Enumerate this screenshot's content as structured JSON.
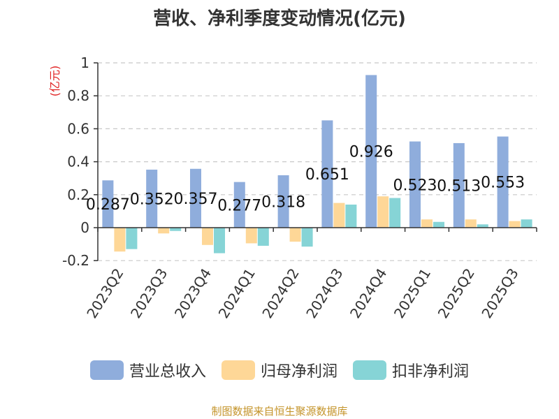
{
  "chart_data": {
    "type": "bar",
    "title": "营收、净利季度变动情况(亿元)",
    "ylabel": "(亿元)",
    "xlabel": "",
    "ylim": [
      -0.2,
      1
    ],
    "yticks": [
      -0.2,
      0,
      0.2,
      0.4,
      0.6,
      0.8,
      1
    ],
    "ytick_labels": [
      "-0.2",
      "0",
      "0.2",
      "0.4",
      "0.6",
      "0.8",
      "1"
    ],
    "grid": true,
    "categories": [
      "2023Q2",
      "2023Q3",
      "2023Q4",
      "2024Q1",
      "2024Q2",
      "2024Q3",
      "2024Q4",
      "2025Q1",
      "2025Q2",
      "2025Q3"
    ],
    "series": [
      {
        "name": "营业总收入",
        "color": "#8faddc",
        "values": [
          0.287,
          0.352,
          0.357,
          0.277,
          0.318,
          0.651,
          0.926,
          0.523,
          0.513,
          0.553
        ],
        "labels": [
          "0.287",
          "0.352",
          "0.357",
          "0.277",
          "0.318",
          "0.651",
          "0.926",
          "0.523",
          "0.513",
          "0.553"
        ]
      },
      {
        "name": "归母净利润",
        "color": "#fed797",
        "values": [
          -0.145,
          -0.035,
          -0.105,
          -0.095,
          -0.085,
          0.15,
          0.19,
          0.05,
          0.05,
          0.04
        ]
      },
      {
        "name": "扣非净利润",
        "color": "#86d4d6",
        "values": [
          -0.13,
          -0.02,
          -0.155,
          -0.11,
          -0.115,
          0.14,
          0.18,
          0.035,
          0.02,
          0.05
        ]
      }
    ],
    "legend_position": "bottom"
  },
  "source": "制图数据来自恒生聚源数据库"
}
